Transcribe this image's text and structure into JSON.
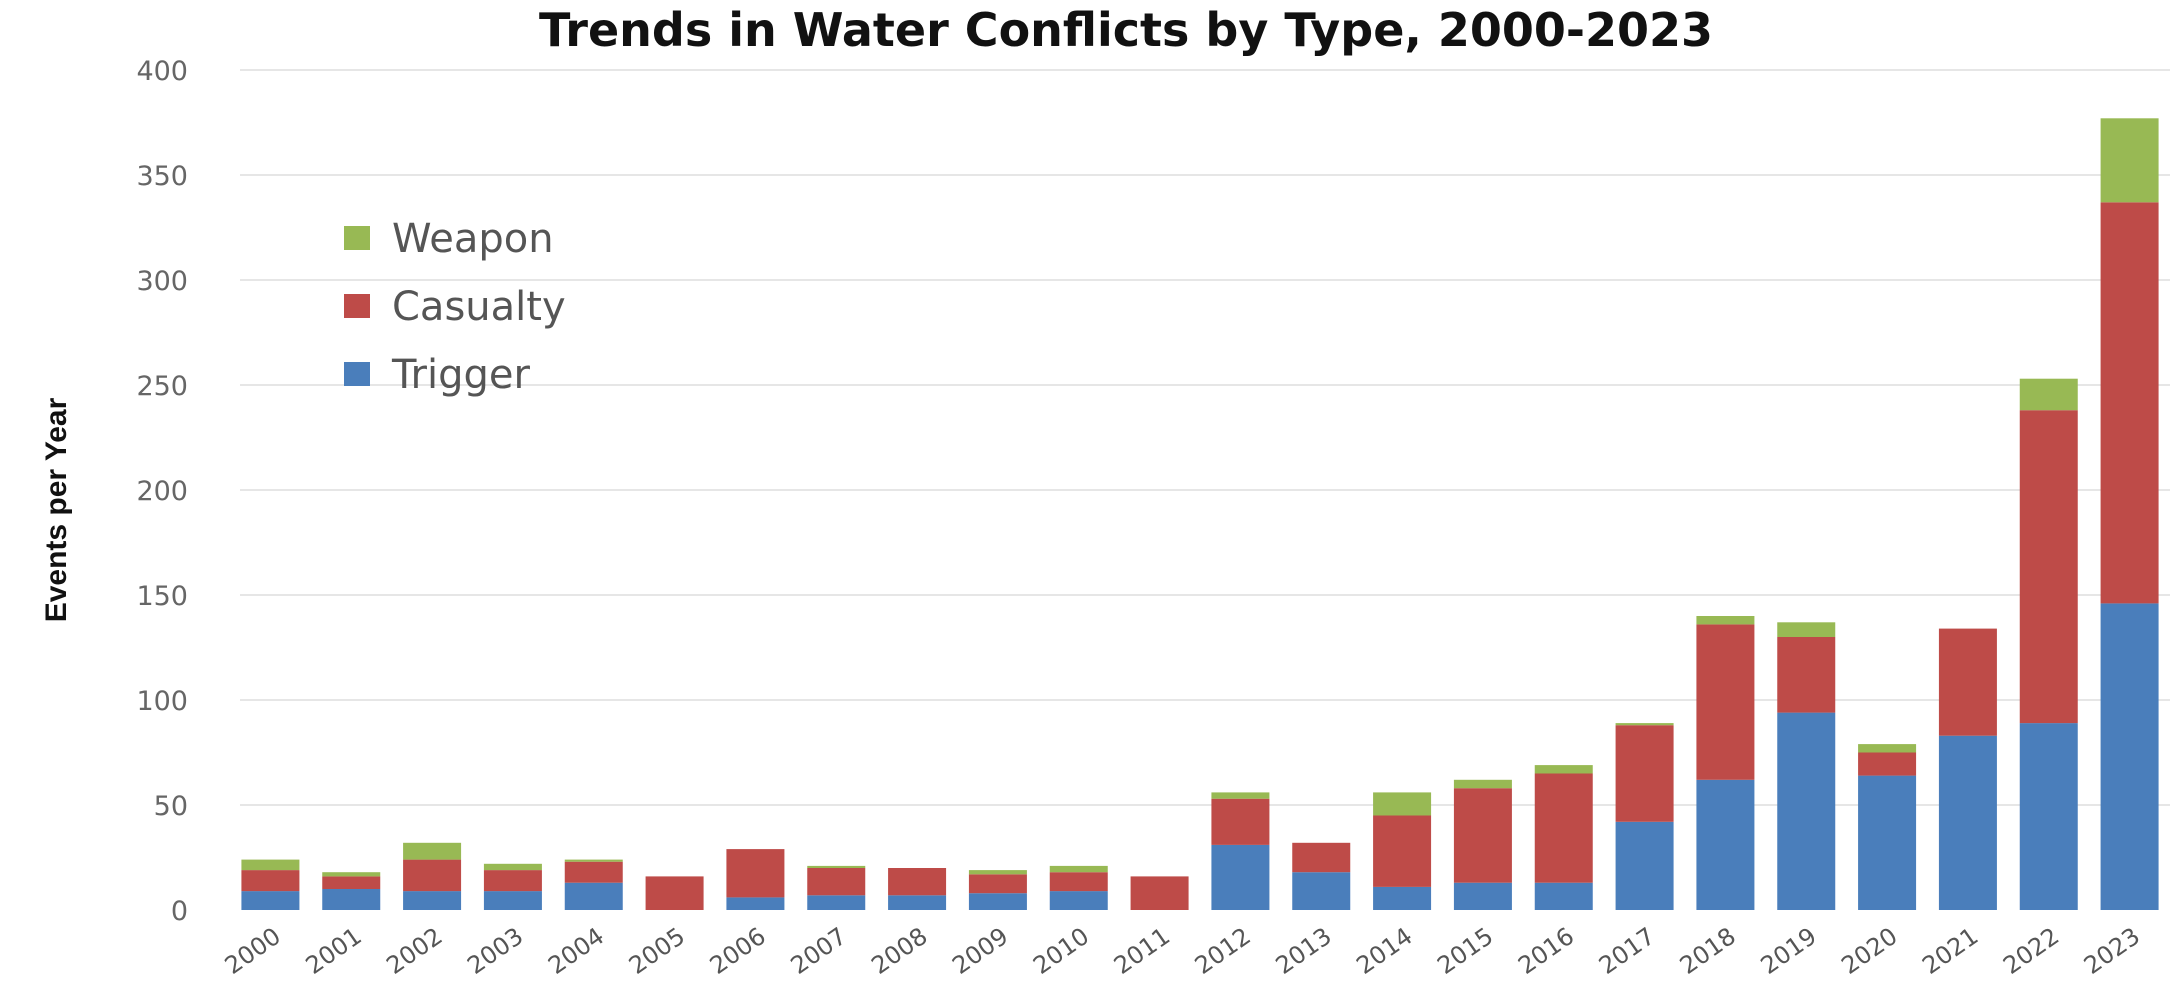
{
  "chart_data": {
    "type": "bar",
    "stacked": true,
    "title": "Trends in Water Conflicts by Type, 2000-2023",
    "xlabel": "",
    "ylabel": "Events per Year",
    "ylim": [
      0,
      400
    ],
    "yticks": [
      0,
      50,
      100,
      150,
      200,
      250,
      300,
      350,
      400
    ],
    "grid": true,
    "legend_position": "top-left",
    "categories": [
      "2000",
      "2001",
      "2002",
      "2003",
      "2004",
      "2005",
      "2006",
      "2007",
      "2008",
      "2009",
      "2010",
      "2011",
      "2012",
      "2013",
      "2014",
      "2015",
      "2016",
      "2017",
      "2018",
      "2019",
      "2020",
      "2021",
      "2022",
      "2023"
    ],
    "series": [
      {
        "name": "Trigger",
        "color": "#4a7ebb",
        "values": [
          9,
          10,
          9,
          9,
          13,
          0,
          6,
          7,
          7,
          8,
          9,
          0,
          31,
          18,
          11,
          13,
          13,
          42,
          62,
          94,
          64,
          83,
          89,
          146
        ]
      },
      {
        "name": "Casualty",
        "color": "#be4b48",
        "values": [
          10,
          6,
          15,
          10,
          10,
          16,
          23,
          13,
          13,
          9,
          9,
          16,
          22,
          14,
          34,
          45,
          52,
          46,
          74,
          36,
          11,
          51,
          149,
          191
        ]
      },
      {
        "name": "Weapon",
        "color": "#98b954",
        "values": [
          5,
          2,
          8,
          3,
          1,
          0,
          0,
          1,
          0,
          2,
          3,
          0,
          3,
          0,
          11,
          4,
          4,
          1,
          4,
          7,
          4,
          0,
          15,
          40
        ]
      }
    ]
  }
}
